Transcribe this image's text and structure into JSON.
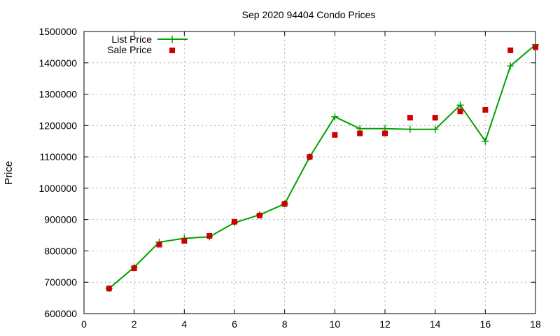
{
  "chart_data": {
    "type": "line",
    "title": "Sep 2020 94404 Condo Prices",
    "xlabel": "",
    "ylabel": "Price",
    "xlim": [
      0,
      18
    ],
    "ylim": [
      600000,
      1500000
    ],
    "xticks": [
      0,
      2,
      4,
      6,
      8,
      10,
      12,
      14,
      16,
      18
    ],
    "yticks": [
      600000,
      700000,
      800000,
      900000,
      1000000,
      1100000,
      1200000,
      1300000,
      1400000,
      1500000
    ],
    "grid": true,
    "legend_position": "top-left",
    "series": [
      {
        "name": "List Price",
        "style": "line-with-plus-markers",
        "color": "#00a000",
        "x": [
          1,
          2,
          3,
          4,
          5,
          6,
          7,
          8,
          9,
          10,
          11,
          12,
          13,
          14,
          15,
          16,
          17,
          18
        ],
        "values": [
          680000,
          748000,
          828000,
          840000,
          845000,
          890000,
          915000,
          950000,
          1100000,
          1228000,
          1190000,
          1190000,
          1188000,
          1188000,
          1265000,
          1150000,
          1390000,
          1458000
        ]
      },
      {
        "name": "Sale Price",
        "style": "square-markers",
        "color": "#cc0000",
        "x": [
          1,
          2,
          3,
          4,
          5,
          6,
          7,
          8,
          9,
          10,
          11,
          12,
          13,
          14,
          15,
          16,
          17,
          18
        ],
        "values": [
          680000,
          745000,
          820000,
          832000,
          848000,
          893000,
          913000,
          950000,
          1100000,
          1170000,
          1175000,
          1175000,
          1225000,
          1225000,
          1245000,
          1250000,
          1440000,
          1450000
        ]
      }
    ]
  }
}
